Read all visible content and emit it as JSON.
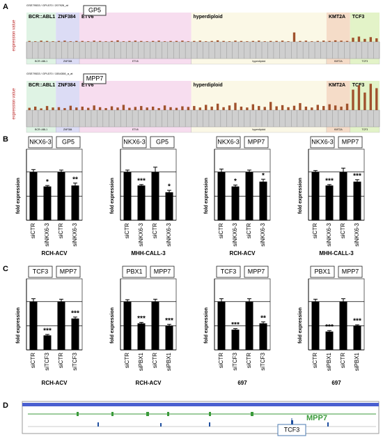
{
  "panel_labels": [
    "A",
    "B",
    "C",
    "D"
  ],
  "panel_a": [
    {
      "type": "bar",
      "header": "GSE79533 / GPL570 / 207926_at",
      "gene": "GP5",
      "ylabel": "expression value",
      "color": "#a0522d",
      "ylim": [
        0,
        100
      ],
      "regions": [
        {
          "label": "BCR::ABL1",
          "color": "#dff3e4",
          "start": 0,
          "end": 4
        },
        {
          "label": "ZNF384",
          "color": "#dcdcf5",
          "start": 5,
          "end": 8
        },
        {
          "label": "ETV6",
          "color": "#f7ddef",
          "start": 9,
          "end": 27
        },
        {
          "label": "hyperdiploid",
          "color": "#fbf8e6",
          "start": 28,
          "end": 50
        },
        {
          "label": "KMT2A",
          "color": "#f5dcc8",
          "start": 51,
          "end": 54
        },
        {
          "label": "TCF3",
          "color": "#e3f3c8",
          "start": 55,
          "end": 59
        }
      ],
      "values": [
        3,
        2,
        4,
        3,
        2,
        3,
        4,
        2,
        3,
        3,
        2,
        4,
        3,
        2,
        3,
        5,
        2,
        3,
        4,
        3,
        2,
        3,
        4,
        2,
        3,
        3,
        4,
        2,
        3,
        4,
        2,
        3,
        5,
        3,
        2,
        4,
        3,
        2,
        3,
        4,
        2,
        3,
        3,
        4,
        2,
        32,
        3,
        4,
        2,
        3,
        4,
        3,
        5,
        4,
        3,
        14,
        18,
        10,
        16,
        12
      ]
    },
    {
      "type": "bar",
      "header": "GSE79533 / GPL570 / 1554308_a_at",
      "gene": "MPP7",
      "ylabel": "expression value",
      "color": "#a0522d",
      "ylim": [
        0,
        100
      ],
      "regions": [
        {
          "label": "BCR::ABL1",
          "color": "#dff3e4",
          "start": 0,
          "end": 4
        },
        {
          "label": "ZNF384",
          "color": "#dcdcf5",
          "start": 5,
          "end": 8
        },
        {
          "label": "ETV6",
          "color": "#f7ddef",
          "start": 9,
          "end": 27
        },
        {
          "label": "hyperdiploid",
          "color": "#fbf8e6",
          "start": 28,
          "end": 50
        },
        {
          "label": "KMT2A",
          "color": "#f5dcc8",
          "start": 51,
          "end": 54
        },
        {
          "label": "TCF3",
          "color": "#e3f3c8",
          "start": 55,
          "end": 59
        }
      ],
      "values": [
        8,
        12,
        6,
        14,
        9,
        10,
        7,
        15,
        9,
        12,
        8,
        16,
        10,
        7,
        13,
        9,
        18,
        8,
        11,
        14,
        9,
        12,
        7,
        16,
        10,
        8,
        13,
        11,
        14,
        9,
        18,
        12,
        22,
        10,
        16,
        25,
        12,
        9,
        20,
        14,
        11,
        28,
        13,
        17,
        10,
        15,
        24,
        12,
        9,
        18,
        14,
        20,
        16,
        12,
        22,
        70,
        85,
        60,
        90,
        75
      ]
    }
  ],
  "chart_data": [
    {
      "type": "bar",
      "ylabel": "fold expression",
      "xlabel": "RCH-ACV",
      "groups": [
        "NKX6-3",
        "GP5"
      ],
      "categories": [
        "siCTR",
        "siNKX6-3",
        "siCTR",
        "siNKX6-3"
      ],
      "values": [
        1.0,
        0.7,
        1.0,
        0.72
      ],
      "errors": [
        0.05,
        0.02,
        0.04,
        0.05
      ],
      "annotations": [
        {
          "index": 1,
          "text": "*"
        },
        {
          "index": 3,
          "text": "**"
        }
      ],
      "color": "#000000",
      "ylim": [
        0,
        1.3
      ],
      "reference_lines": [
        0.5,
        1
      ]
    },
    {
      "type": "bar",
      "ylabel": "fold expression",
      "xlabel": "MHH-CALL-3",
      "groups": [
        "NKX6-3",
        "GP5"
      ],
      "categories": [
        "siCTR",
        "siNKX6-3",
        "siCTR",
        "siNKX6-3"
      ],
      "values": [
        1.0,
        0.72,
        1.0,
        0.58
      ],
      "errors": [
        0.04,
        0.02,
        0.1,
        0.04
      ],
      "annotations": [
        {
          "index": 1,
          "text": "***"
        },
        {
          "index": 3,
          "text": "*"
        }
      ],
      "color": "#000000",
      "ylim": [
        0,
        1.3
      ],
      "reference_lines": [
        0.5,
        1
      ]
    },
    {
      "type": "bar",
      "ylabel": "fold expression",
      "xlabel": "RCH-ACV",
      "groups": [
        "NKX6-3",
        "MPP7"
      ],
      "categories": [
        "siCTR",
        "siNKX6-3",
        "siCTR",
        "siNKX6-3"
      ],
      "values": [
        1.0,
        0.7,
        1.0,
        0.8
      ],
      "errors": [
        0.06,
        0.03,
        0.04,
        0.05
      ],
      "annotations": [
        {
          "index": 1,
          "text": "*"
        },
        {
          "index": 3,
          "text": "*"
        }
      ],
      "color": "#000000",
      "ylim": [
        0,
        1.3
      ],
      "reference_lines": [
        0.5,
        1
      ]
    },
    {
      "type": "bar",
      "ylabel": "fold expression",
      "xlabel": "MHH-CALL-3",
      "groups": [
        "NKX6-3",
        "MPP7"
      ],
      "categories": [
        "siCTR",
        "siNKX6-3",
        "siCTR",
        "siNKX6-3"
      ],
      "values": [
        1.0,
        0.72,
        1.0,
        0.8
      ],
      "errors": [
        0.03,
        0.02,
        0.08,
        0.04
      ],
      "annotations": [
        {
          "index": 1,
          "text": "***"
        },
        {
          "index": 3,
          "text": "***"
        }
      ],
      "color": "#000000",
      "ylim": [
        0,
        1.3
      ],
      "reference_lines": [
        0.5,
        1
      ]
    },
    {
      "type": "bar",
      "ylabel": "fold expression",
      "xlabel": "RCH-ACV",
      "groups": [
        "TCF3",
        "MPP7"
      ],
      "categories": [
        "siCTR",
        "siTCF3",
        "siCTR",
        "siTCF3"
      ],
      "values": [
        1.0,
        0.3,
        1.0,
        0.65
      ],
      "errors": [
        0.06,
        0.02,
        0.05,
        0.03
      ],
      "annotations": [
        {
          "index": 1,
          "text": "***"
        },
        {
          "index": 3,
          "text": "***"
        }
      ],
      "color": "#000000",
      "ylim": [
        0,
        1.3
      ],
      "reference_lines": [
        0.5,
        1
      ]
    },
    {
      "type": "bar",
      "ylabel": "fold expression",
      "xlabel": "RCH-ACV",
      "groups": [
        "PBX1",
        "MPP7"
      ],
      "categories": [
        "siCTR",
        "siPBX1",
        "siCTR",
        "siPBX1"
      ],
      "values": [
        1.0,
        0.55,
        1.0,
        0.5
      ],
      "errors": [
        0.04,
        0.02,
        0.05,
        0.03
      ],
      "annotations": [
        {
          "index": 1,
          "text": "***"
        },
        {
          "index": 3,
          "text": "***"
        }
      ],
      "color": "#000000",
      "ylim": [
        0,
        1.3
      ],
      "reference_lines": [
        0.5,
        1
      ]
    },
    {
      "type": "bar",
      "ylabel": "fold expression",
      "xlabel": "697",
      "groups": [
        "TCF3",
        "MPP7"
      ],
      "categories": [
        "siCTR",
        "siTCF3",
        "siCTR",
        "siTCF3"
      ],
      "values": [
        1.0,
        0.42,
        1.0,
        0.55
      ],
      "errors": [
        0.06,
        0.02,
        0.06,
        0.03
      ],
      "annotations": [
        {
          "index": 1,
          "text": "***"
        },
        {
          "index": 3,
          "text": "**"
        }
      ],
      "color": "#000000",
      "ylim": [
        0,
        1.3
      ],
      "reference_lines": [
        0.5,
        1
      ]
    },
    {
      "type": "bar",
      "ylabel": "fold expression",
      "xlabel": "697",
      "groups": [
        "PBX1",
        "MPP7"
      ],
      "categories": [
        "siCTR",
        "siPBX1",
        "siCTR",
        "siPBX1"
      ],
      "values": [
        1.0,
        0.38,
        1.0,
        0.5
      ],
      "errors": [
        0.05,
        0.02,
        0.06,
        0.02
      ],
      "annotations": [
        {
          "index": 1,
          "text": "***"
        },
        {
          "index": 3,
          "text": "***"
        }
      ],
      "color": "#000000",
      "ylim": [
        0,
        1.3
      ],
      "reference_lines": [
        0.5,
        1
      ]
    }
  ],
  "panel_d": {
    "gene": "MPP7",
    "factor": "TCF3"
  }
}
